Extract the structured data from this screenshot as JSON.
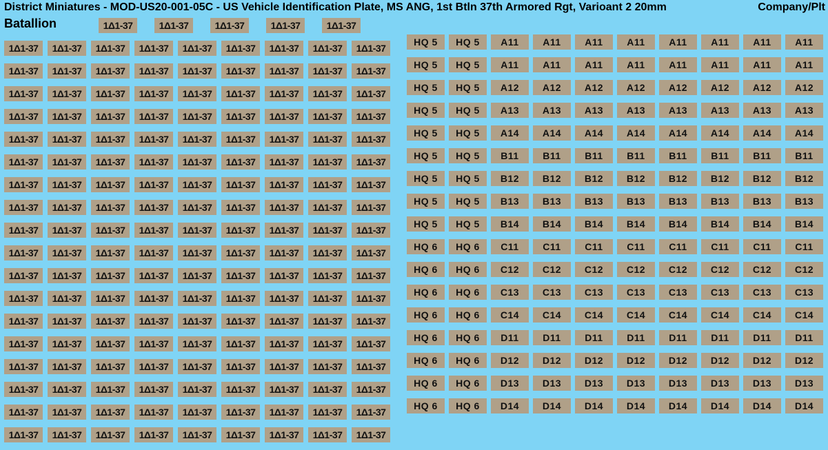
{
  "header": "District Miniatures - MOD-US20-001-05C - US Vehicle Identification Plate, MS ANG, 1st Btln 37th Armored Rgt, Varioant 2 20mm",
  "right_header": "Company/Plt",
  "left_label": "Batallion",
  "left_plate": "1Δ1-37",
  "colors": {
    "background": "#7fd4f5",
    "plate_bg": "#b0a088",
    "text": "#111111"
  },
  "left_top_count": 5,
  "left_rows": 18,
  "left_cols": 9,
  "right_rows": [
    {
      "hq": "HQ 5",
      "cell": "A11"
    },
    {
      "hq": "HQ 5",
      "cell": "A11"
    },
    {
      "hq": "HQ 5",
      "cell": "A12"
    },
    {
      "hq": "HQ 5",
      "cell": "A13"
    },
    {
      "hq": "HQ 5",
      "cell": "A14"
    },
    {
      "hq": "HQ 5",
      "cell": "B11"
    },
    {
      "hq": "HQ 5",
      "cell": "B12"
    },
    {
      "hq": "HQ 5",
      "cell": "B13"
    },
    {
      "hq": "HQ 5",
      "cell": "B14"
    },
    {
      "hq": "HQ 6",
      "cell": "C11"
    },
    {
      "hq": "HQ 6",
      "cell": "C12"
    },
    {
      "hq": "HQ 6",
      "cell": "C13"
    },
    {
      "hq": "HQ 6",
      "cell": "C14"
    },
    {
      "hq": "HQ 6",
      "cell": "D11"
    },
    {
      "hq": "HQ 6",
      "cell": "D12"
    },
    {
      "hq": "HQ 6",
      "cell": "D13"
    },
    {
      "hq": "HQ 6",
      "cell": "D14"
    }
  ],
  "right_hq_cols": 2,
  "right_cell_cols": 8
}
